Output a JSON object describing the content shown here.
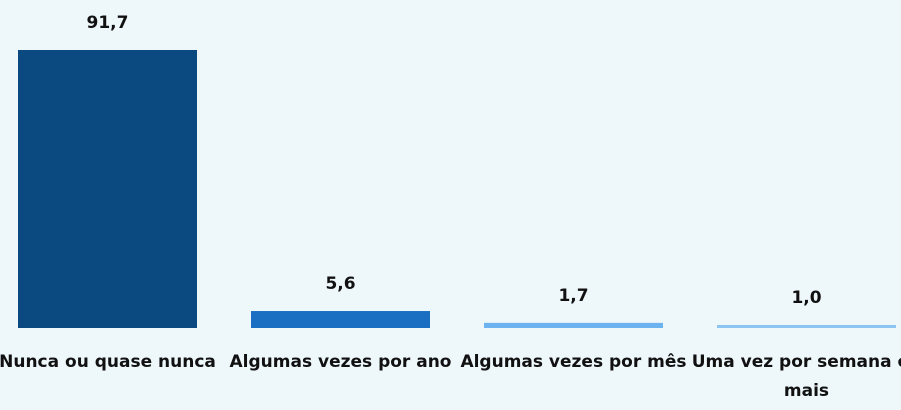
{
  "chart_data": {
    "type": "bar",
    "categories": [
      "Nunca ou quase nunca",
      "Algumas vezes por ano",
      "Algumas vezes por mês",
      "Uma vez por semana ou mais"
    ],
    "values": [
      91.7,
      5.6,
      1.7,
      1.0
    ],
    "value_labels": [
      "91,7",
      "5,6",
      "1,7",
      "1,0"
    ],
    "colors": [
      "#0b4a80",
      "#1a6fc2",
      "#6db3ef",
      "#8ec5f2"
    ]
  }
}
